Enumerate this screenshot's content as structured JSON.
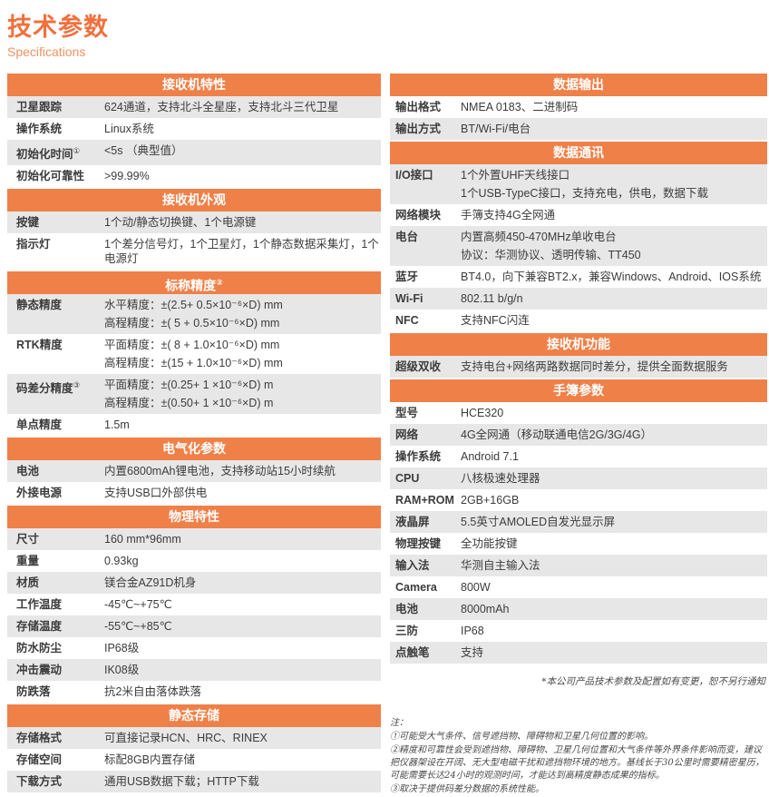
{
  "page": {
    "title": "技术参数",
    "subtitle": "Specifications"
  },
  "colors": {
    "accent_orange": "#ef8048",
    "title_orange": "#f1703c",
    "subtitle_orange": "#f2925f",
    "row_shade_gray": "#e7e7e7",
    "text": "#3c3c3c"
  },
  "left_sections": [
    {
      "title": "接收机特性",
      "rows": [
        {
          "label": "卫星跟踪",
          "lines": [
            "624通道，支持北斗全星座，支持北斗三代卫星"
          ],
          "shaded": true
        },
        {
          "label": "操作系统",
          "lines": [
            "Linux系统"
          ],
          "shaded": false
        },
        {
          "label": "初始化时间",
          "sup": "①",
          "lines": [
            "<5s （典型值）"
          ],
          "shaded": true
        },
        {
          "label": "初始化可靠性",
          "lines": [
            ">99.99%"
          ],
          "shaded": false
        }
      ]
    },
    {
      "title": "接收机外观",
      "rows": [
        {
          "label": "按键",
          "lines": [
            "1个动/静态切换键、1个电源键"
          ],
          "shaded": true
        },
        {
          "label": "指示灯",
          "lines": [
            "1个差分信号灯，1个卫星灯，1个静态数据采集灯，1个电源灯"
          ],
          "shaded": false
        }
      ]
    },
    {
      "title": "标称精度",
      "sup": "②",
      "rows": [
        {
          "label": "静态精度",
          "lines": [
            "水平精度：±(2.5+ 0.5×10⁻⁶×D) mm",
            "高程精度：±( 5 + 0.5×10⁻⁶×D) mm"
          ],
          "shaded": true
        },
        {
          "label": "RTK精度",
          "lines": [
            "平面精度：±( 8 + 1.0×10⁻⁶×D) mm",
            "高程精度：±(15 + 1.0×10⁻⁶×D) mm"
          ],
          "shaded": false
        },
        {
          "label": "码差分精度",
          "sup": "③",
          "lines": [
            "平面精度：±(0.25+ 1 ×10⁻⁶×D) m",
            "高程精度：±(0.50+ 1 ×10⁻⁶×D) m"
          ],
          "shaded": true
        },
        {
          "label": "单点精度",
          "lines": [
            "1.5m"
          ],
          "shaded": false
        }
      ]
    },
    {
      "title": "电气化参数",
      "rows": [
        {
          "label": "电池",
          "lines": [
            "内置6800mAh锂电池，支持移动站15小时续航"
          ],
          "shaded": true
        },
        {
          "label": "外接电源",
          "lines": [
            "支持USB口外部供电"
          ],
          "shaded": false
        }
      ]
    },
    {
      "title": "物理特性",
      "rows": [
        {
          "label": "尺寸",
          "lines": [
            "160 mm*96mm"
          ],
          "shaded": true
        },
        {
          "label": "重量",
          "lines": [
            "0.93kg"
          ],
          "shaded": false
        },
        {
          "label": "材质",
          "lines": [
            "镁合金AZ91D机身"
          ],
          "shaded": true
        },
        {
          "label": "工作温度",
          "lines": [
            "-45℃~+75℃"
          ],
          "shaded": false
        },
        {
          "label": "存储温度",
          "lines": [
            "-55℃~+85℃"
          ],
          "shaded": true
        },
        {
          "label": "防水防尘",
          "lines": [
            "IP68级"
          ],
          "shaded": false
        },
        {
          "label": "冲击震动",
          "lines": [
            "IK08级"
          ],
          "shaded": true
        },
        {
          "label": "防跌落",
          "lines": [
            "抗2米自由落体跌落"
          ],
          "shaded": false
        }
      ]
    },
    {
      "title": "静态存储",
      "rows": [
        {
          "label": "存储格式",
          "lines": [
            "可直接记录HCN、HRC、RINEX"
          ],
          "shaded": true
        },
        {
          "label": "存储空间",
          "lines": [
            "标配8GB内置存储"
          ],
          "shaded": false
        },
        {
          "label": "下载方式",
          "lines": [
            "通用USB数据下载；HTTP下载"
          ],
          "shaded": true
        }
      ]
    }
  ],
  "right_sections": [
    {
      "title": "数据输出",
      "rows": [
        {
          "label": "输出格式",
          "lines": [
            "NMEA 0183、二进制码"
          ],
          "shaded": false
        },
        {
          "label": "输出方式",
          "lines": [
            "BT/Wi-Fi/电台"
          ],
          "shaded": true
        }
      ]
    },
    {
      "title": "数据通讯",
      "rows": [
        {
          "label": "I/O接口",
          "lines": [
            "1个外置UHF天线接口",
            "1个USB-TypeC接口，支持充电，供电，数据下载"
          ],
          "shaded": true
        },
        {
          "label": "网络模块",
          "lines": [
            "手簿支持4G全网通"
          ],
          "shaded": false
        },
        {
          "label": "电台",
          "lines": [
            "内置高频450-470MHz单收电台",
            "协议：华测协议、透明传输、TT450"
          ],
          "shaded": true
        },
        {
          "label": "蓝牙",
          "lines": [
            "BT4.0，向下兼容BT2.x，兼容Windows、Android、IOS系统"
          ],
          "shaded": false
        },
        {
          "label": "Wi-Fi",
          "lines": [
            "802.11 b/g/n"
          ],
          "shaded": true
        },
        {
          "label": "NFC",
          "lines": [
            "支持NFC闪连"
          ],
          "shaded": false
        }
      ]
    },
    {
      "title": "接收机功能",
      "rows": [
        {
          "label": "超级双收",
          "lines": [
            "支持电台+网络两路数据同时差分，提供全面数据服务"
          ],
          "shaded": true
        }
      ]
    },
    {
      "title": "手簿参数",
      "rows": [
        {
          "label": "型号",
          "lines": [
            "HCE320"
          ],
          "shaded": false
        },
        {
          "label": "网络",
          "lines": [
            "4G全网通（移动联通电信2G/3G/4G）"
          ],
          "shaded": true
        },
        {
          "label": "操作系统",
          "lines": [
            "Android 7.1"
          ],
          "shaded": false
        },
        {
          "label": "CPU",
          "lines": [
            "八核极速处理器"
          ],
          "shaded": true
        },
        {
          "label": "RAM+ROM",
          "lines": [
            "2GB+16GB"
          ],
          "shaded": false
        },
        {
          "label": "液晶屏",
          "lines": [
            "5.5英寸AMOLED自发光显示屏"
          ],
          "shaded": true
        },
        {
          "label": "物理按键",
          "lines": [
            "全功能按键"
          ],
          "shaded": false
        },
        {
          "label": "输入法",
          "lines": [
            "华测自主输入法"
          ],
          "shaded": true
        },
        {
          "label": "Camera",
          "lines": [
            "800W"
          ],
          "shaded": false
        },
        {
          "label": "电池",
          "lines": [
            "8000mAh"
          ],
          "shaded": true
        },
        {
          "label": "三防",
          "lines": [
            "IP68"
          ],
          "shaded": false
        },
        {
          "label": "点触笔",
          "lines": [
            "支持"
          ],
          "shaded": true
        }
      ]
    }
  ],
  "footnotes": {
    "disclaimer": "*本公司产品技术参数及配置如有变更，恕不另行通知",
    "note_title": "注：",
    "notes": [
      "①可能受大气条件、信号遮挡物、障碍物和卫星几何位置的影响。",
      "②精度和可靠性会受到遮挡物、障碍物、卫星几何位置和大气条件等外界条件影响而变，建议把仪器架设在开阔、无大型电磁干扰和遮挡物环境的地方。基线长于30公里时需要精密星历，可能需要长达24小时的观测时间，才能达到高精度静态成果的指标。",
      "③取决于提供码差分数据的系统性能。"
    ]
  }
}
